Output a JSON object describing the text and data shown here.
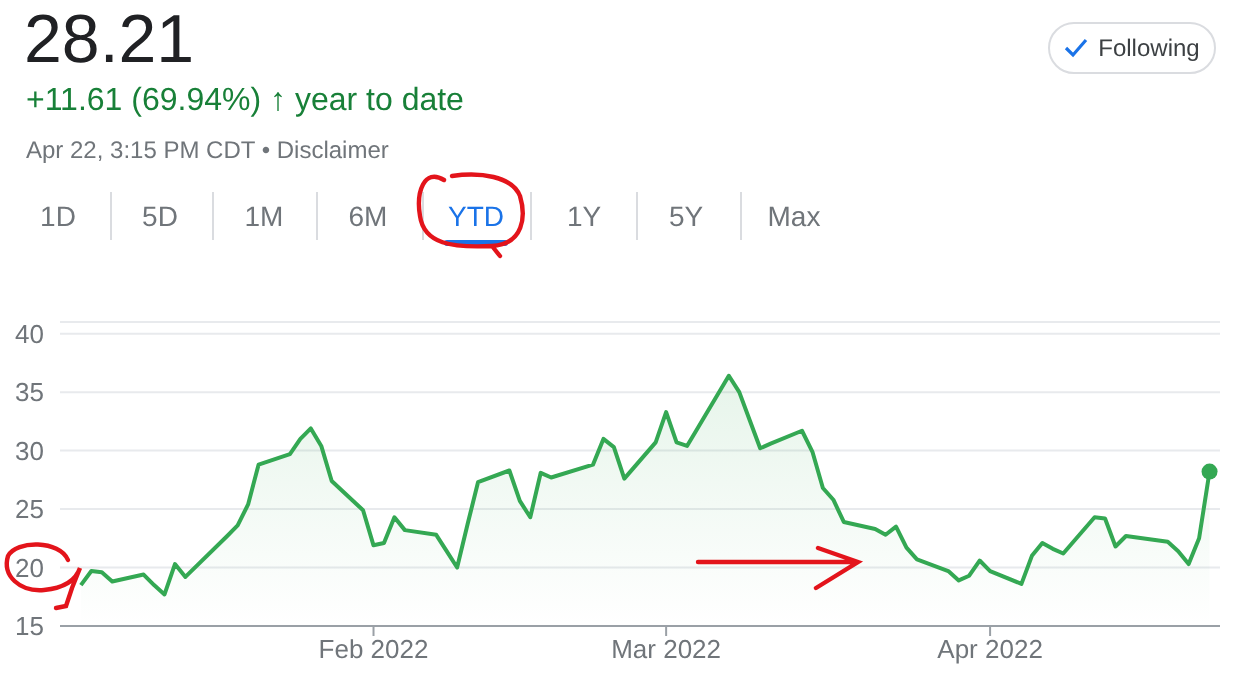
{
  "chart_data": {
    "type": "area",
    "title": "28.21",
    "subtitle": "+11.61 (69.94%) ↑ year to date",
    "annotations": [
      "Apr 22, 3:15 PM CDT • Disclaimer",
      "1D",
      "5D",
      "1M",
      "6M",
      "YTD",
      "1Y",
      "5Y",
      "Max",
      "Following"
    ],
    "x": [
      "2022-01-04",
      "2022-01-05",
      "2022-01-06",
      "2022-01-07",
      "2022-01-10",
      "2022-01-11",
      "2022-01-12",
      "2022-01-13",
      "2022-01-14",
      "2022-01-18",
      "2022-01-19",
      "2022-01-20",
      "2022-01-21",
      "2022-01-24",
      "2022-01-25",
      "2022-01-26",
      "2022-01-27",
      "2022-01-28",
      "2022-01-31",
      "2022-02-01",
      "2022-02-02",
      "2022-02-03",
      "2022-02-04",
      "2022-02-07",
      "2022-02-08",
      "2022-02-09",
      "2022-02-10",
      "2022-02-11",
      "2022-02-14",
      "2022-02-15",
      "2022-02-16",
      "2022-02-17",
      "2022-02-18",
      "2022-02-22",
      "2022-02-23",
      "2022-02-24",
      "2022-02-25",
      "2022-02-28",
      "2022-03-01",
      "2022-03-02",
      "2022-03-03",
      "2022-03-04",
      "2022-03-07",
      "2022-03-08",
      "2022-03-09",
      "2022-03-10",
      "2022-03-11",
      "2022-03-14",
      "2022-03-15",
      "2022-03-16",
      "2022-03-17",
      "2022-03-18",
      "2022-03-21",
      "2022-03-22",
      "2022-03-23",
      "2022-03-24",
      "2022-03-25",
      "2022-03-28",
      "2022-03-29",
      "2022-03-30",
      "2022-03-31",
      "2022-04-01",
      "2022-04-04",
      "2022-04-05",
      "2022-04-06",
      "2022-04-07",
      "2022-04-08",
      "2022-04-11",
      "2022-04-12",
      "2022-04-13",
      "2022-04-14",
      "2022-04-18",
      "2022-04-19",
      "2022-04-20",
      "2022-04-21",
      "2022-04-22"
    ],
    "series": [
      {
        "color": "#34a853",
        "values": [
          18.5,
          19.7,
          19.6,
          18.8,
          19.4,
          18.5,
          17.7,
          20.3,
          19.2,
          22.7,
          23.6,
          25.4,
          28.8,
          29.7,
          31.0,
          31.9,
          30.4,
          27.4,
          24.9,
          21.9,
          22.1,
          24.3,
          23.2,
          22.8,
          21.4,
          20.0,
          23.7,
          27.3,
          28.3,
          25.7,
          24.3,
          28.1,
          27.7,
          28.8,
          31.0,
          30.3,
          27.6,
          30.7,
          33.3,
          30.7,
          30.4,
          31.9,
          36.4,
          35.0,
          32.6,
          30.2,
          30.6,
          31.7,
          29.9,
          26.8,
          25.8,
          23.9,
          23.3,
          22.8,
          23.5,
          21.7,
          20.7,
          19.7,
          18.9,
          19.3,
          20.6,
          19.7,
          18.6,
          21.0,
          22.1,
          21.6,
          21.2,
          24.3,
          24.2,
          21.8,
          22.7,
          22.2,
          21.4,
          20.3,
          22.5,
          28.21
        ]
      }
    ],
    "xlim": [
      "2022-01-02",
      "2022-04-23"
    ],
    "xticks": [
      {
        "value": "2022-02-01",
        "label": "Feb 2022"
      },
      {
        "value": "2022-03-01",
        "label": "Mar 2022"
      },
      {
        "value": "2022-04-01",
        "label": "Apr 2022"
      }
    ],
    "ylim": [
      15,
      41
    ],
    "yticks": [
      15,
      20,
      25,
      30,
      35,
      40
    ],
    "grid": "y",
    "legend": false
  }
}
